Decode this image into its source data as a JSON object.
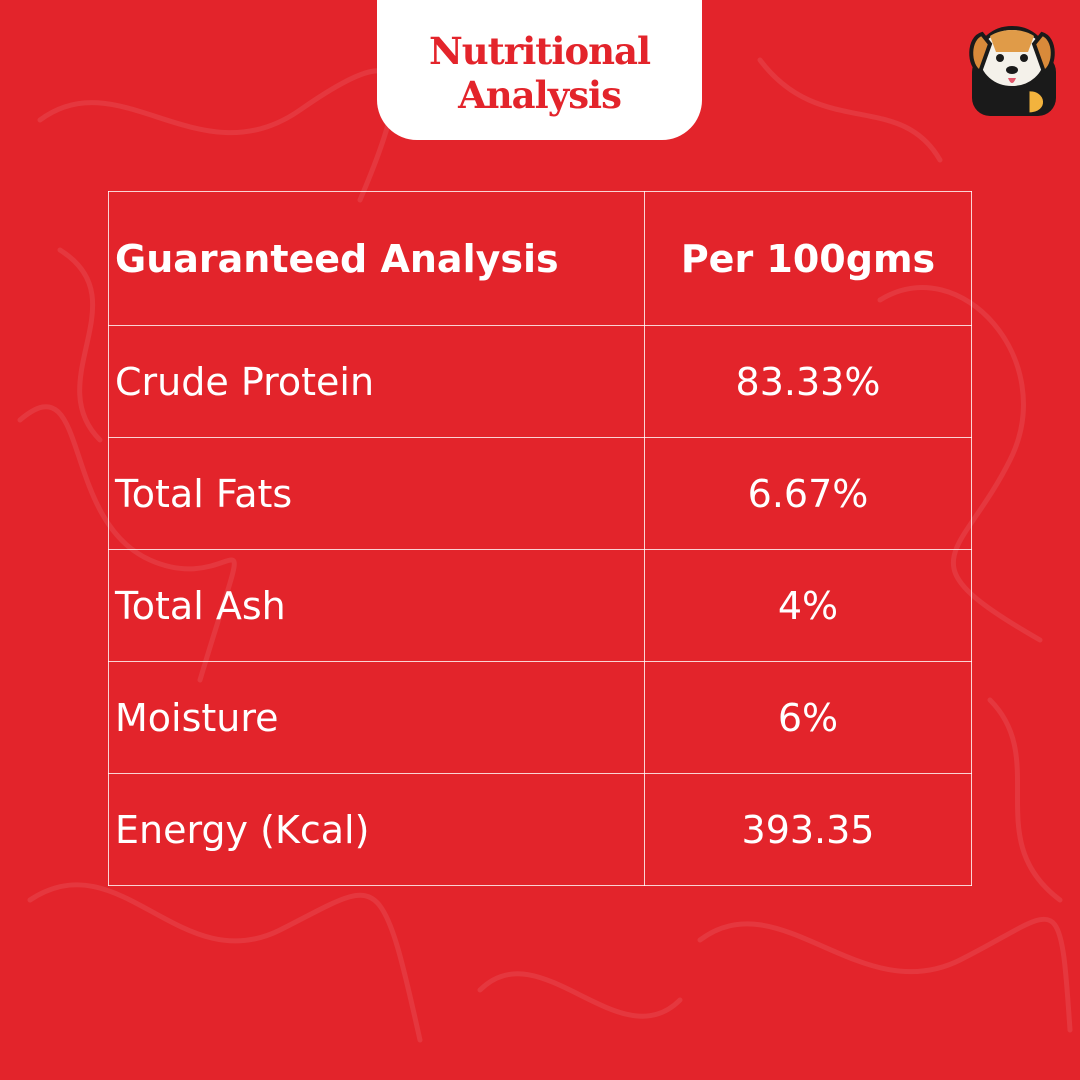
{
  "header": {
    "title": "Nutritional Analysis"
  },
  "table": {
    "columns": [
      "Guaranteed Analysis",
      "Per 100gms"
    ],
    "rows": [
      [
        "Crude Protein",
        "83.33%"
      ],
      [
        "Total Fats",
        "6.67%"
      ],
      [
        "Total Ash",
        "4%"
      ],
      [
        "Moisture",
        "6%"
      ],
      [
        "Energy (Kcal)",
        "393.35"
      ]
    ]
  }
}
